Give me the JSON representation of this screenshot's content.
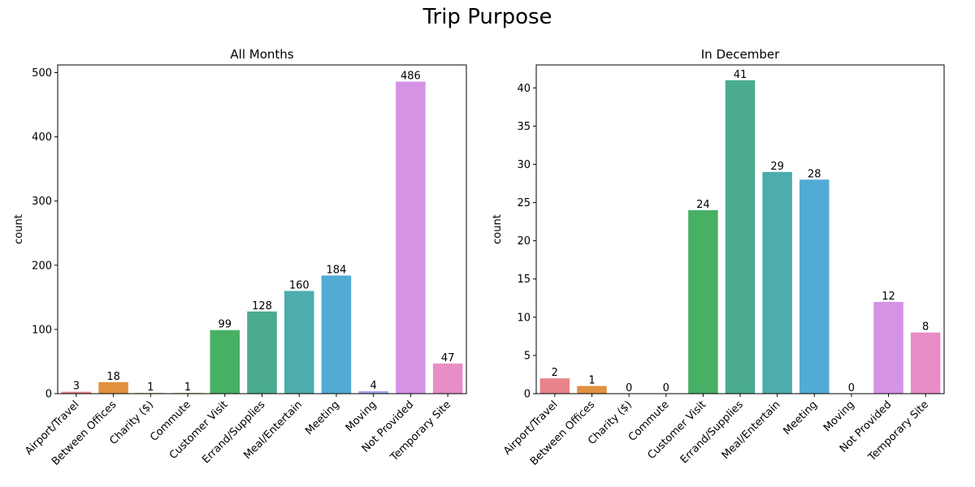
{
  "figure": {
    "title": "Trip Purpose"
  },
  "chart_data": [
    {
      "type": "bar",
      "title": "All Months",
      "xlabel": "",
      "ylabel": "count",
      "ylim": [
        0,
        512
      ],
      "yticks": [
        0,
        100,
        200,
        300,
        400,
        500
      ],
      "grid": false,
      "legend": "none",
      "categories": [
        "Airport/Travel",
        "Between Offices",
        "Charity ($)",
        "Commute",
        "Customer Visit",
        "Errand/Supplies",
        "Meal/Entertain",
        "Meeting",
        "Moving",
        "Not Provided",
        "Temporary Site"
      ],
      "values": [
        3,
        18,
        1,
        1,
        99,
        128,
        160,
        184,
        4,
        486,
        47
      ],
      "colors": [
        "#e8838b",
        "#e0913f",
        "#b8a13d",
        "#98a83a",
        "#47b065",
        "#4aab8f",
        "#4cadac",
        "#52abd3",
        "#a3a6ea",
        "#d593e6",
        "#e98dc6"
      ]
    },
    {
      "type": "bar",
      "title": "In December",
      "xlabel": "",
      "ylabel": "count",
      "ylim": [
        0,
        43
      ],
      "yticks": [
        0,
        5,
        10,
        15,
        20,
        25,
        30,
        35,
        40
      ],
      "grid": false,
      "legend": "none",
      "categories": [
        "Airport/Travel",
        "Between Offices",
        "Charity ($)",
        "Commute",
        "Customer Visit",
        "Errand/Supplies",
        "Meal/Entertain",
        "Meeting",
        "Moving",
        "Not Provided",
        "Temporary Site"
      ],
      "values": [
        2,
        1,
        0,
        0,
        24,
        41,
        29,
        28,
        0,
        12,
        8
      ],
      "colors": [
        "#e8838b",
        "#e0913f",
        "#b8a13d",
        "#98a83a",
        "#47b065",
        "#4aab8f",
        "#4cadac",
        "#52abd3",
        "#a3a6ea",
        "#d593e6",
        "#e98dc6"
      ]
    }
  ]
}
